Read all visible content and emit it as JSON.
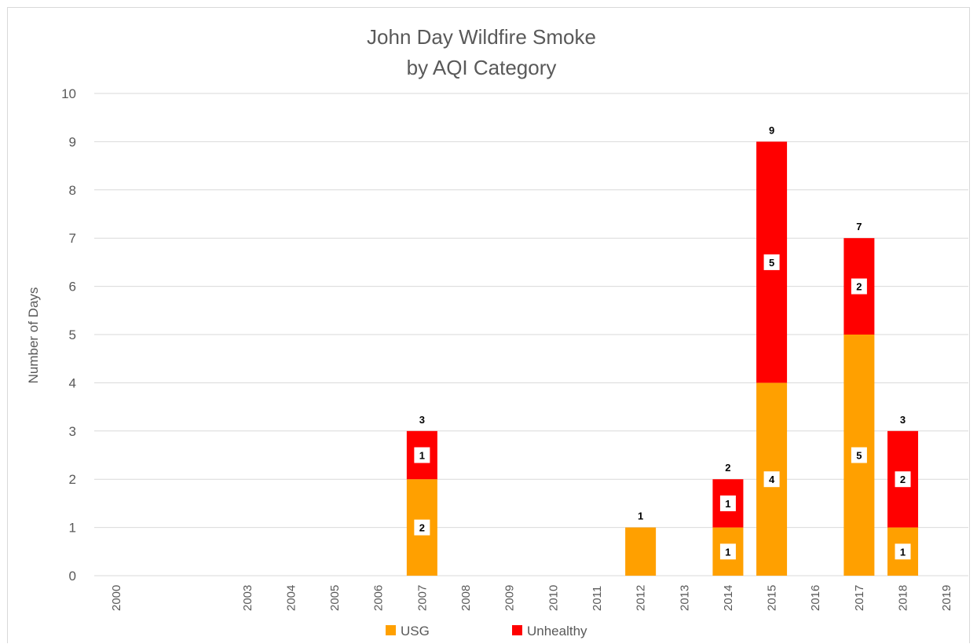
{
  "chart_data": {
    "type": "bar",
    "stacked": true,
    "title": "John Day Wildfire Smoke",
    "subtitle": "by AQI Category",
    "xlabel": "",
    "ylabel": "Number of Days",
    "ylim": [
      0,
      10
    ],
    "yticks": [
      "0",
      "1",
      "2",
      "3",
      "4",
      "5",
      "6",
      "7",
      "8",
      "9",
      "10"
    ],
    "grid": true,
    "legend_position": "bottom",
    "categories": [
      "2000",
      "",
      "",
      "2003",
      "2004",
      "2005",
      "2006",
      "2007",
      "2008",
      "2009",
      "2010",
      "2011",
      "2012",
      "2013",
      "2014",
      "2015",
      "2016",
      "2017",
      "2018",
      "2019"
    ],
    "series": [
      {
        "name": "USG",
        "color": "#FFA000",
        "values": [
          0,
          0,
          0,
          0,
          0,
          0,
          0,
          2,
          0,
          0,
          0,
          0,
          1,
          0,
          1,
          4,
          0,
          5,
          1,
          0
        ]
      },
      {
        "name": "Unhealthy",
        "color": "#FF0000",
        "values": [
          0,
          0,
          0,
          0,
          0,
          0,
          0,
          1,
          0,
          0,
          0,
          0,
          0,
          0,
          1,
          5,
          0,
          2,
          2,
          0
        ]
      }
    ],
    "segment_labels": [
      {
        "series": 0,
        "index": 7,
        "text": "2"
      },
      {
        "series": 1,
        "index": 7,
        "text": "1"
      },
      {
        "series": 0,
        "index": 14,
        "text": "1"
      },
      {
        "series": 1,
        "index": 14,
        "text": "1"
      },
      {
        "series": 0,
        "index": 15,
        "text": "4"
      },
      {
        "series": 1,
        "index": 15,
        "text": "5"
      },
      {
        "series": 0,
        "index": 17,
        "text": "5"
      },
      {
        "series": 1,
        "index": 17,
        "text": "2"
      },
      {
        "series": 0,
        "index": 18,
        "text": "1"
      },
      {
        "series": 1,
        "index": 18,
        "text": "2"
      }
    ],
    "total_labels": [
      {
        "index": 7,
        "text": "3"
      },
      {
        "index": 12,
        "text": "1"
      },
      {
        "index": 14,
        "text": "2"
      },
      {
        "index": 15,
        "text": "9"
      },
      {
        "index": 17,
        "text": "7"
      },
      {
        "index": 18,
        "text": "3"
      }
    ]
  }
}
